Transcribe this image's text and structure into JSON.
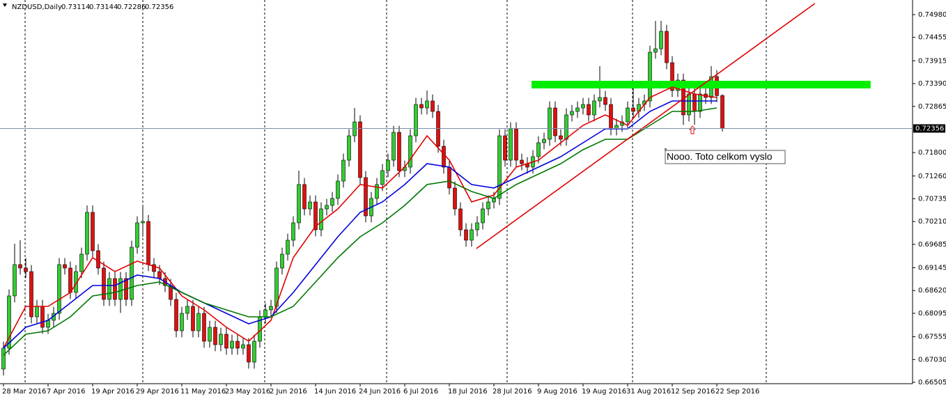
{
  "chart_data": {
    "type": "candlestick",
    "title": "NZDUSD,Daily",
    "ohlc": [
      0.73114,
      0.73144,
      0.72286,
      0.72356
    ],
    "categories": [
      "28 Mar 2016",
      null,
      null,
      null,
      null,
      null,
      null,
      null,
      "7 Apr 2016",
      null,
      null,
      null,
      null,
      null,
      null,
      null,
      "19 Apr 2016",
      null,
      null,
      null,
      null,
      null,
      null,
      null,
      "29 Apr 2016",
      null,
      null,
      null,
      null,
      null,
      null,
      null,
      "11 May 2016",
      null,
      null,
      null,
      null,
      null,
      null,
      null,
      "23 May 2016",
      null,
      null,
      null,
      null,
      null,
      null,
      null,
      "2 Jun 2016",
      null,
      null,
      null,
      null,
      null,
      null,
      null,
      "14 Jun 2016",
      null,
      null,
      null,
      null,
      null,
      null,
      null,
      "24 Jun 2016",
      null,
      null,
      null,
      null,
      null,
      null,
      null,
      "6 Jul 2016",
      null,
      null,
      null,
      null,
      null,
      null,
      null,
      "18 Jul 2016",
      null,
      null,
      null,
      null,
      null,
      null,
      null,
      "28 Jul 2016",
      null,
      null,
      null,
      null,
      null,
      null,
      null,
      "9 Aug 2016",
      null,
      null,
      null,
      null,
      null,
      null,
      null,
      "19 Aug 2016",
      null,
      null,
      null,
      null,
      null,
      null,
      null,
      "31 Aug 2016",
      null,
      null,
      null,
      null,
      null,
      null,
      null,
      "12 Sep 2016",
      null,
      null,
      null,
      null,
      null,
      null,
      null,
      "22 Sep 2016",
      null
    ],
    "candles": [
      [
        0.66811,
        0.67442,
        0.66661,
        0.67292
      ],
      [
        0.67292,
        0.68646,
        0.67142,
        0.68496
      ],
      [
        0.68496,
        0.697,
        0.68346,
        0.69218
      ],
      [
        0.69218,
        0.6978,
        0.68988,
        0.69138
      ],
      [
        0.69138,
        0.69368,
        0.68907,
        0.69057
      ],
      [
        0.69057,
        0.69207,
        0.67864,
        0.68014
      ],
      [
        0.68014,
        0.68405,
        0.67864,
        0.68255
      ],
      [
        0.68255,
        0.68405,
        0.67623,
        0.67773
      ],
      [
        0.67773,
        0.68084,
        0.67623,
        0.67934
      ],
      [
        0.67934,
        0.68244,
        0.67784,
        0.68094
      ],
      [
        0.68094,
        0.69368,
        0.67944,
        0.69218
      ],
      [
        0.69218,
        0.69368,
        0.68988,
        0.69138
      ],
      [
        0.69138,
        0.69288,
        0.68426,
        0.68576
      ],
      [
        0.68576,
        0.69207,
        0.68426,
        0.69057
      ],
      [
        0.69057,
        0.69609,
        0.68907,
        0.69459
      ],
      [
        0.69459,
        0.70582,
        0.69309,
        0.70422
      ],
      [
        0.70422,
        0.70582,
        0.69389,
        0.69539
      ],
      [
        0.69539,
        0.69689,
        0.68988,
        0.69138
      ],
      [
        0.69138,
        0.69288,
        0.68265,
        0.68415
      ],
      [
        0.68415,
        0.69047,
        0.68265,
        0.68897
      ],
      [
        0.68897,
        0.69047,
        0.68265,
        0.68415
      ],
      [
        0.68415,
        0.69047,
        0.68105,
        0.68897
      ],
      [
        0.68897,
        0.69047,
        0.68265,
        0.68415
      ],
      [
        0.68415,
        0.69769,
        0.68265,
        0.69619
      ],
      [
        0.69619,
        0.70331,
        0.69469,
        0.70181
      ],
      [
        0.70181,
        0.70582,
        0.6986,
        0.70213
      ],
      [
        0.70213,
        0.70363,
        0.69068,
        0.69218
      ],
      [
        0.69218,
        0.69368,
        0.68907,
        0.69057
      ],
      [
        0.69057,
        0.69207,
        0.68747,
        0.68897
      ],
      [
        0.68897,
        0.69047,
        0.68586,
        0.68736
      ],
      [
        0.68736,
        0.68886,
        0.68265,
        0.68415
      ],
      [
        0.68415,
        0.68565,
        0.67543,
        0.67693
      ],
      [
        0.67693,
        0.68244,
        0.67543,
        0.68094
      ],
      [
        0.68094,
        0.68405,
        0.67944,
        0.68255
      ],
      [
        0.68255,
        0.68405,
        0.67543,
        0.67693
      ],
      [
        0.67693,
        0.68244,
        0.67543,
        0.68094
      ],
      [
        0.68094,
        0.68244,
        0.67302,
        0.67452
      ],
      [
        0.67452,
        0.67923,
        0.67302,
        0.67773
      ],
      [
        0.67773,
        0.67923,
        0.67222,
        0.67372
      ],
      [
        0.67372,
        0.67763,
        0.67222,
        0.67613
      ],
      [
        0.67613,
        0.67763,
        0.67142,
        0.67292
      ],
      [
        0.67292,
        0.67602,
        0.67142,
        0.67452
      ],
      [
        0.67452,
        0.67602,
        0.67142,
        0.67292
      ],
      [
        0.67292,
        0.67522,
        0.67142,
        0.67372
      ],
      [
        0.67372,
        0.67522,
        0.66821,
        0.66971
      ],
      [
        0.66971,
        0.67602,
        0.66821,
        0.67452
      ],
      [
        0.67452,
        0.68164,
        0.67302,
        0.68014
      ],
      [
        0.68014,
        0.68325,
        0.67864,
        0.68175
      ],
      [
        0.68175,
        0.68405,
        0.68025,
        0.68255
      ],
      [
        0.68255,
        0.69288,
        0.68105,
        0.69138
      ],
      [
        0.69138,
        0.69609,
        0.68988,
        0.69459
      ],
      [
        0.69459,
        0.6993,
        0.69309,
        0.6978
      ],
      [
        0.6978,
        0.70331,
        0.6963,
        0.70181
      ],
      [
        0.70181,
        0.71385,
        0.70031,
        0.71064
      ],
      [
        0.71064,
        0.71214,
        0.70352,
        0.70502
      ],
      [
        0.70502,
        0.70812,
        0.70352,
        0.70662
      ],
      [
        0.70662,
        0.70812,
        0.6987,
        0.7002
      ],
      [
        0.7002,
        0.70652,
        0.6987,
        0.70502
      ],
      [
        0.70502,
        0.70732,
        0.70352,
        0.70582
      ],
      [
        0.70582,
        0.70893,
        0.70432,
        0.70743
      ],
      [
        0.70743,
        0.71294,
        0.70593,
        0.71144
      ],
      [
        0.71144,
        0.71775,
        0.70994,
        0.71625
      ],
      [
        0.71625,
        0.72337,
        0.71475,
        0.72187
      ],
      [
        0.72187,
        0.72829,
        0.72037,
        0.72508
      ],
      [
        0.72508,
        0.72658,
        0.71074,
        0.71224
      ],
      [
        0.71224,
        0.71374,
        0.70191,
        0.70341
      ],
      [
        0.70341,
        0.70893,
        0.70191,
        0.70743
      ],
      [
        0.70743,
        0.71214,
        0.70593,
        0.71064
      ],
      [
        0.71064,
        0.71535,
        0.70914,
        0.71385
      ],
      [
        0.71385,
        0.71775,
        0.71235,
        0.71625
      ],
      [
        0.71625,
        0.72417,
        0.71475,
        0.72267
      ],
      [
        0.72267,
        0.72417,
        0.71235,
        0.71385
      ],
      [
        0.71385,
        0.71615,
        0.71235,
        0.71465
      ],
      [
        0.71465,
        0.72337,
        0.71315,
        0.72187
      ],
      [
        0.72187,
        0.73059,
        0.72037,
        0.72909
      ],
      [
        0.72909,
        0.73059,
        0.72679,
        0.72829
      ],
      [
        0.72829,
        0.7323,
        0.72679,
        0.7299
      ],
      [
        0.7299,
        0.7314,
        0.72599,
        0.72749
      ],
      [
        0.72749,
        0.72899,
        0.71796,
        0.71946
      ],
      [
        0.71946,
        0.72096,
        0.71315,
        0.71465
      ],
      [
        0.71465,
        0.71615,
        0.70833,
        0.70983
      ],
      [
        0.70983,
        0.71133,
        0.70352,
        0.70502
      ],
      [
        0.70502,
        0.70652,
        0.6987,
        0.7002
      ],
      [
        0.7002,
        0.7017,
        0.6963,
        0.6978
      ],
      [
        0.6978,
        0.7017,
        0.6963,
        0.7002
      ],
      [
        0.7002,
        0.70331,
        0.6987,
        0.70181
      ],
      [
        0.70181,
        0.70652,
        0.70031,
        0.70502
      ],
      [
        0.70502,
        0.70812,
        0.70352,
        0.70662
      ],
      [
        0.70662,
        0.70893,
        0.70512,
        0.70743
      ],
      [
        0.70743,
        0.72337,
        0.70593,
        0.72187
      ],
      [
        0.72187,
        0.72337,
        0.71475,
        0.71625
      ],
      [
        0.71625,
        0.72498,
        0.71475,
        0.72348
      ],
      [
        0.72348,
        0.72498,
        0.71475,
        0.71625
      ],
      [
        0.71625,
        0.71775,
        0.71395,
        0.71545
      ],
      [
        0.71545,
        0.71695,
        0.71315,
        0.71465
      ],
      [
        0.71465,
        0.71856,
        0.71315,
        0.71706
      ],
      [
        0.71706,
        0.72177,
        0.71556,
        0.72027
      ],
      [
        0.72027,
        0.72257,
        0.71877,
        0.72107
      ],
      [
        0.72107,
        0.72979,
        0.71957,
        0.72829
      ],
      [
        0.72829,
        0.72979,
        0.72037,
        0.72187
      ],
      [
        0.72187,
        0.72337,
        0.71957,
        0.72107
      ],
      [
        0.72107,
        0.72819,
        0.71957,
        0.72669
      ],
      [
        0.72669,
        0.72899,
        0.72519,
        0.72749
      ],
      [
        0.72749,
        0.72979,
        0.72599,
        0.72829
      ],
      [
        0.72829,
        0.73059,
        0.72679,
        0.72909
      ],
      [
        0.72909,
        0.73059,
        0.72519,
        0.72669
      ],
      [
        0.72669,
        0.7314,
        0.72519,
        0.7299
      ],
      [
        0.7299,
        0.73792,
        0.7284,
        0.7307
      ],
      [
        0.7307,
        0.7322,
        0.72759,
        0.72909
      ],
      [
        0.72909,
        0.73059,
        0.72198,
        0.72348
      ],
      [
        0.72348,
        0.72578,
        0.72198,
        0.72428
      ],
      [
        0.72428,
        0.72658,
        0.72278,
        0.72508
      ],
      [
        0.72508,
        0.72979,
        0.72358,
        0.72829
      ],
      [
        0.72829,
        0.73311,
        0.72599,
        0.72749
      ],
      [
        0.72749,
        0.73059,
        0.72599,
        0.72909
      ],
      [
        0.72909,
        0.7314,
        0.72759,
        0.7299
      ],
      [
        0.7299,
        0.74263,
        0.7284,
        0.74113
      ],
      [
        0.74113,
        0.74836,
        0.73963,
        0.74193
      ],
      [
        0.74193,
        0.74836,
        0.74043,
        0.74595
      ],
      [
        0.74595,
        0.74745,
        0.73722,
        0.73872
      ],
      [
        0.73872,
        0.74022,
        0.7308,
        0.7323
      ],
      [
        0.7323,
        0.73621,
        0.7308,
        0.73471
      ],
      [
        0.73471,
        0.73621,
        0.72438,
        0.72669
      ],
      [
        0.72669,
        0.733,
        0.72519,
        0.7315
      ],
      [
        0.7315,
        0.733,
        0.72438,
        0.72749
      ],
      [
        0.72749,
        0.733,
        0.72599,
        0.7315
      ],
      [
        0.7315,
        0.733,
        0.7292,
        0.7307
      ],
      [
        0.7307,
        0.73792,
        0.7292,
        0.73551
      ],
      [
        0.73551,
        0.73701,
        0.72964,
        0.73114
      ],
      [
        0.73114,
        0.73144,
        0.72286,
        0.72356
      ]
    ],
    "colors": {
      "up": "#32cd32",
      "down": "#e01010",
      "wick": "#000000"
    },
    "series": [
      {
        "color": "#e00000",
        "x": [
          0,
          4,
          8,
          12,
          16,
          20,
          24,
          28,
          32,
          36,
          40,
          44,
          48,
          52,
          56,
          60,
          64,
          68,
          72,
          76,
          80,
          84,
          88,
          92,
          96,
          100,
          104,
          108,
          112,
          116,
          120,
          124,
          128
        ],
        "values": [
          0.67292,
          0.68255,
          0.68255,
          0.68576,
          0.69378,
          0.69057,
          0.69298,
          0.69138,
          0.68496,
          0.68175,
          0.67773,
          0.67452,
          0.67934,
          0.69378,
          0.70101,
          0.70502,
          0.71064,
          0.70983,
          0.71465,
          0.72187,
          0.71625,
          0.70662,
          0.70823,
          0.71465,
          0.71625,
          0.72027,
          0.72428,
          0.72669,
          0.72428,
          0.7307,
          0.73311,
          0.7315,
          0.7307
        ]
      },
      {
        "color": "#0000dd",
        "x": [
          0,
          4,
          8,
          12,
          16,
          20,
          24,
          28,
          32,
          36,
          40,
          44,
          48,
          52,
          56,
          60,
          64,
          68,
          72,
          76,
          80,
          84,
          88,
          92,
          96,
          100,
          104,
          108,
          112,
          116,
          120,
          124,
          128
        ],
        "values": [
          0.67292,
          0.67773,
          0.67934,
          0.68335,
          0.68736,
          0.68736,
          0.68977,
          0.68897,
          0.68576,
          0.68335,
          0.68094,
          0.67854,
          0.68014,
          0.68576,
          0.69218,
          0.6986,
          0.70422,
          0.70662,
          0.71064,
          0.71545,
          0.71465,
          0.71064,
          0.70983,
          0.71224,
          0.71465,
          0.71706,
          0.72027,
          0.72348,
          0.72348,
          0.72749,
          0.7299,
          0.7299,
          0.7299
        ]
      },
      {
        "color": "#007700",
        "x": [
          0,
          4,
          8,
          12,
          16,
          20,
          24,
          28,
          32,
          36,
          40,
          44,
          48,
          52,
          56,
          60,
          64,
          68,
          72,
          76,
          80,
          84,
          88,
          92,
          96,
          100,
          104,
          108,
          112,
          116,
          120,
          124,
          128
        ],
        "values": [
          0.67131,
          0.67613,
          0.67693,
          0.68014,
          0.68496,
          0.68576,
          0.68736,
          0.68817,
          0.68576,
          0.68335,
          0.68175,
          0.68014,
          0.68014,
          0.68255,
          0.68817,
          0.69378,
          0.6986,
          0.70181,
          0.70582,
          0.71064,
          0.71144,
          0.70903,
          0.70743,
          0.71064,
          0.71304,
          0.71545,
          0.71866,
          0.72107,
          0.72107,
          0.72428,
          0.72749,
          0.72749,
          0.72829
        ]
      }
    ],
    "ylim": [
      0.66473,
      0.75317
    ],
    "yticks": [
      {
        "value": 0.7498,
        "label": "0.74980"
      },
      0.74455,
      0.73915,
      {
        "value": 0.7339,
        "label": "0.73390"
      },
      0.72865,
      {
        "value": 0.718,
        "label": "0.71800"
      },
      {
        "value": 0.7126,
        "label": "0.71260"
      },
      0.70735,
      {
        "value": 0.7021,
        "label": "0.70210"
      },
      0.69685,
      0.69145,
      {
        "value": 0.6862,
        "label": "0.68620"
      },
      0.68095,
      0.67555,
      {
        "value": 0.6703,
        "label": "0.67030"
      },
      0.66505
    ],
    "current_price": 0.72356,
    "trendline": {
      "color": "#e00000",
      "x": [
        84.85,
        145.6
      ],
      "y": [
        0.69587,
        0.75237
      ]
    },
    "zone": {
      "color": "#00ee00",
      "x": [
        94.75,
        155.6
      ],
      "y": [
        0.73279,
        0.73455
      ]
    },
    "annotation": "Nooo. Toto celkom vyslo"
  }
}
